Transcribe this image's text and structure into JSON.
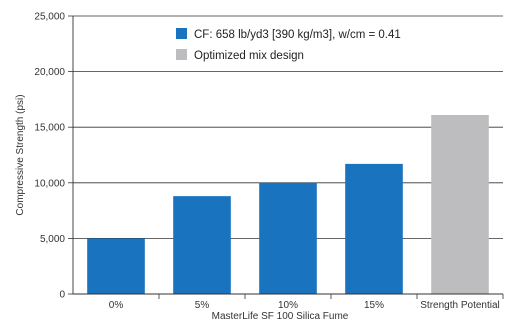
{
  "chart_data": {
    "type": "bar",
    "title": "",
    "xlabel": "MasterLife SF 100 Silica Fume",
    "ylabel": "Compressive Strength (psi)",
    "ylim": [
      0,
      25000
    ],
    "yticks": [
      0,
      5000,
      10000,
      15000,
      20000,
      25000
    ],
    "ytick_labels": [
      "0",
      "5,000",
      "10,000",
      "15,000",
      "20,000",
      "25,000"
    ],
    "grid": "horizontal",
    "legend_position": "top-right",
    "categories": [
      "0%",
      "5%",
      "10%",
      "15%",
      "Strength Potential"
    ],
    "values": [
      5000,
      8800,
      10000,
      11700,
      16100
    ],
    "bar_colors": [
      "#1a73bf",
      "#1a73bf",
      "#1a73bf",
      "#1a73bf",
      "#bdbdbf"
    ],
    "series": [
      {
        "name": "CF: 658 lb/yd3 [390 kg/m3], w/cm = 0.41",
        "color": "#1a73bf"
      },
      {
        "name": "Optimized mix design",
        "color": "#bdbdbf"
      }
    ]
  }
}
